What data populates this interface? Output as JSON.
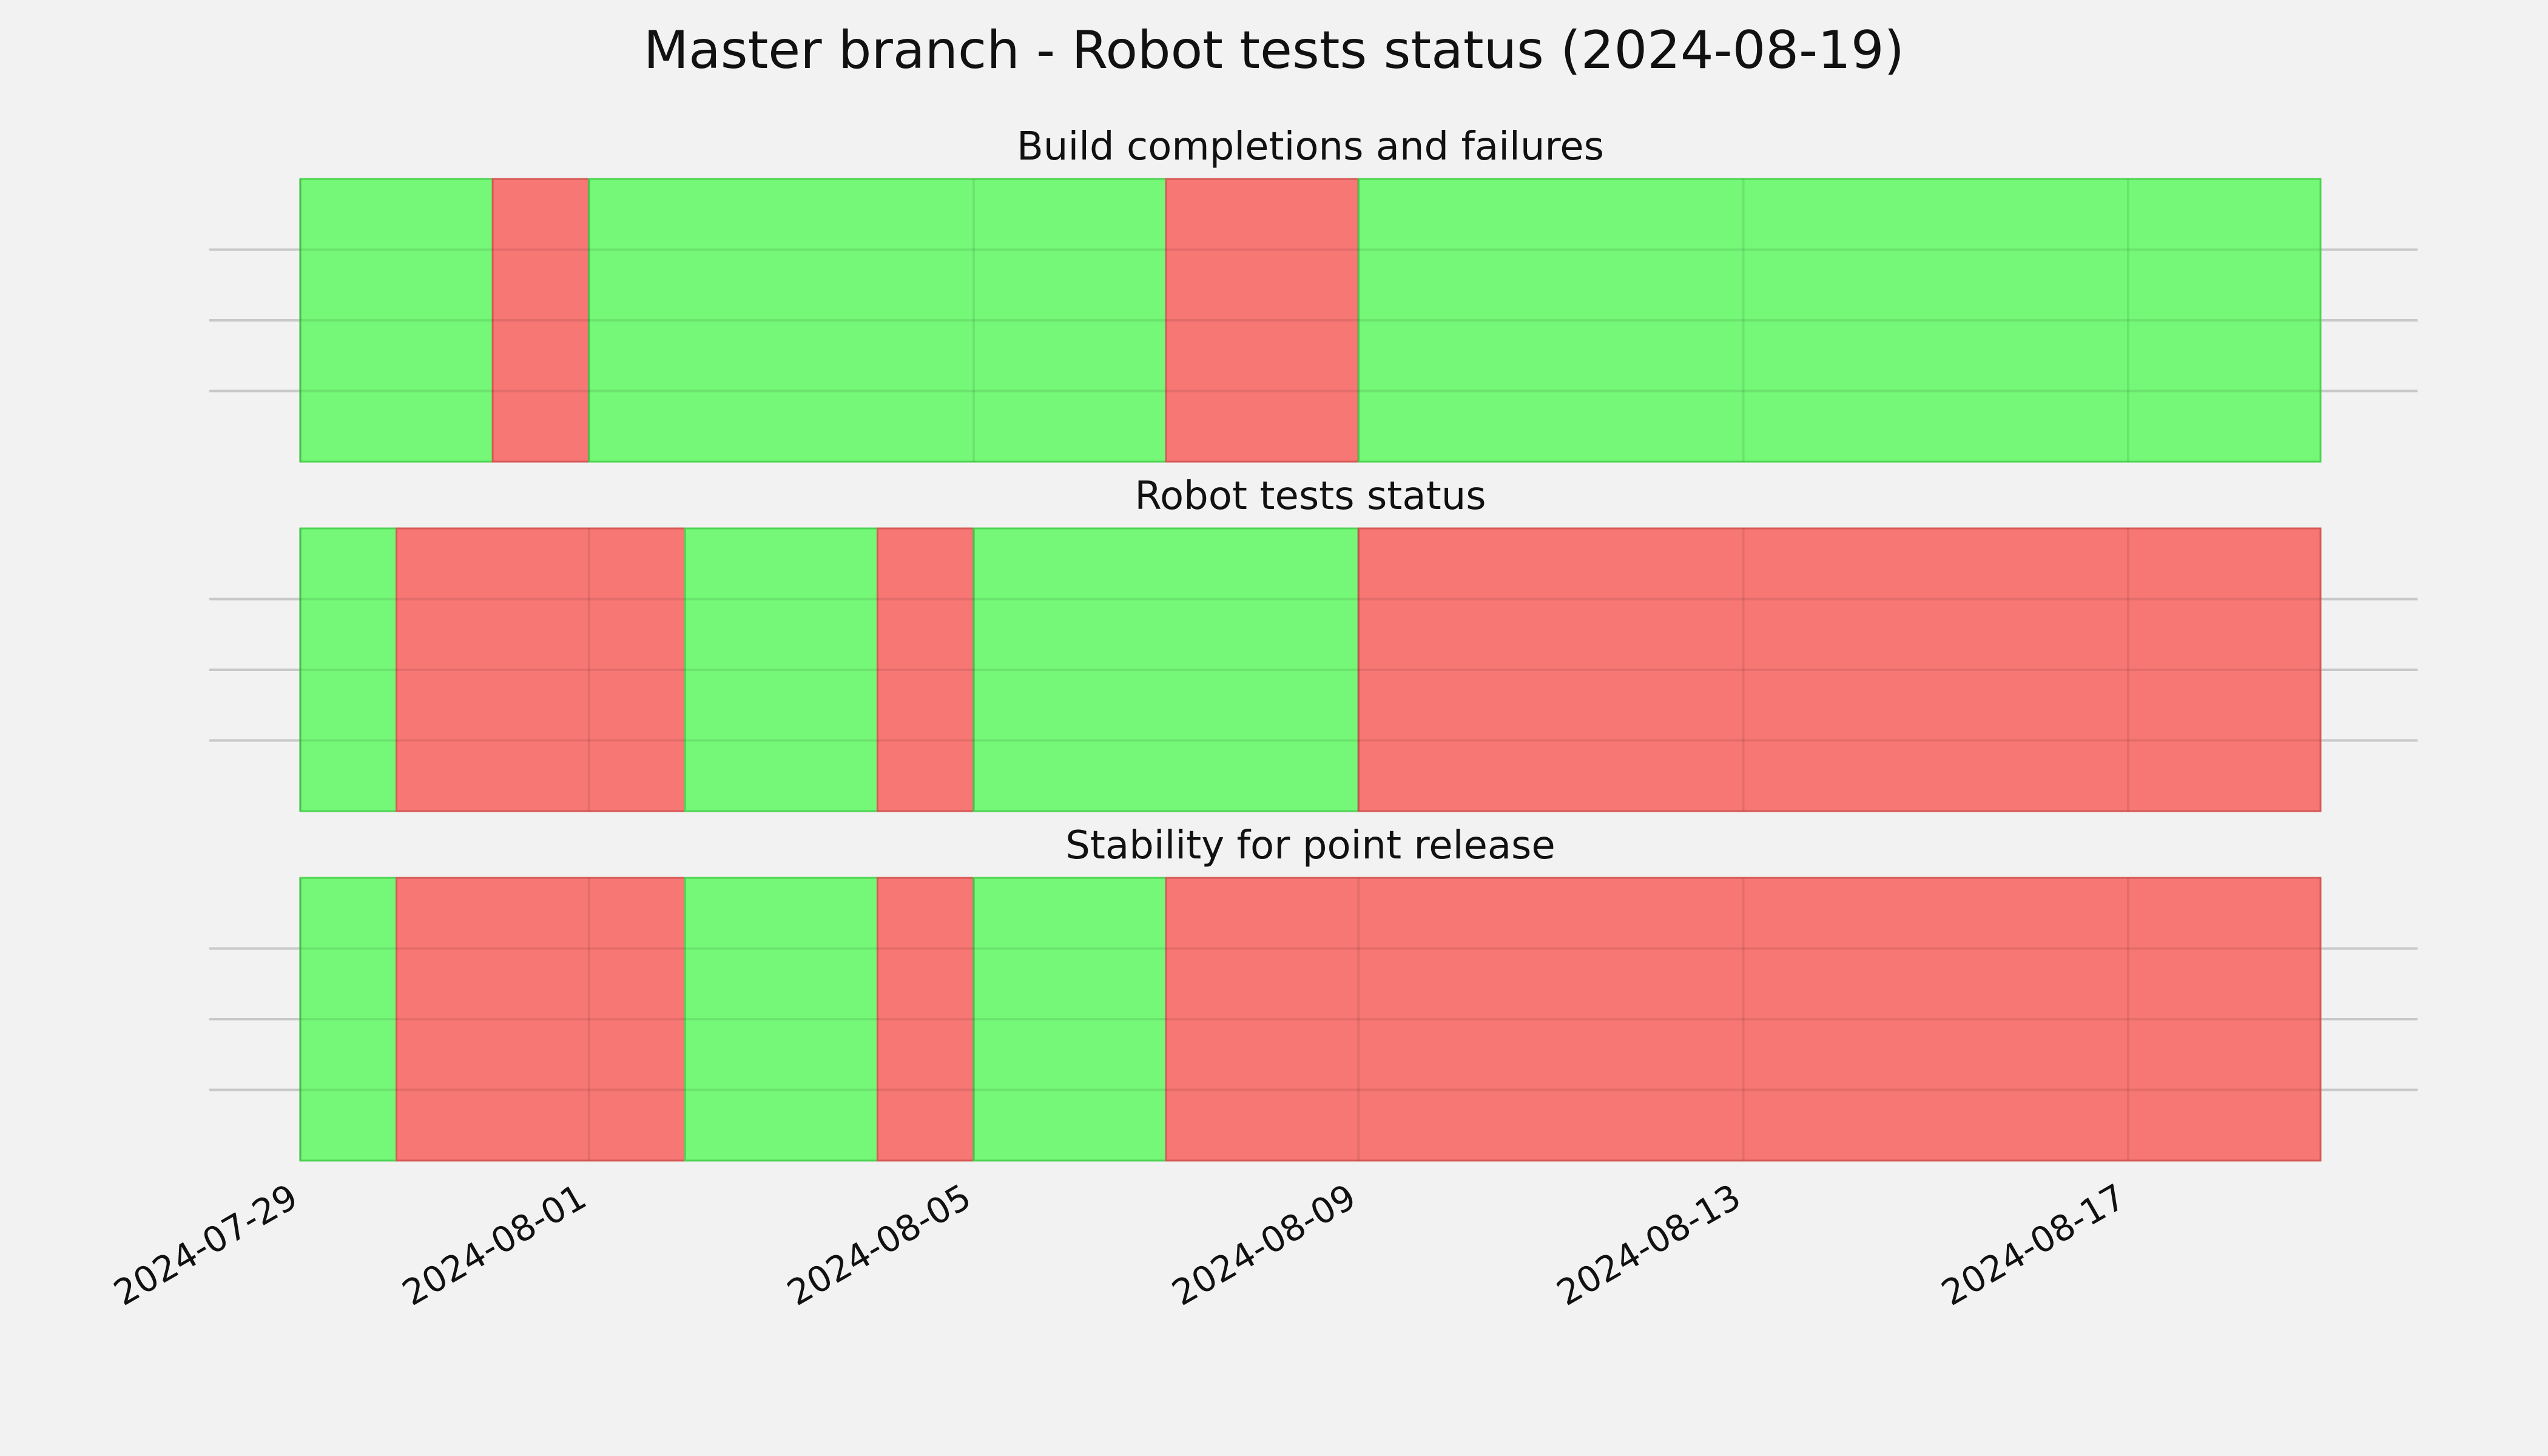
{
  "chart_data": {
    "type": "timeline",
    "title": "Master branch - Robot tests status (2024-08-19)",
    "x_range": [
      "2024-07-29",
      "2024-08-19"
    ],
    "x_ticks": [
      "2024-07-29",
      "2024-08-01",
      "2024-08-05",
      "2024-08-09",
      "2024-08-13",
      "2024-08-17"
    ],
    "grid": true,
    "colors": {
      "pass": "#75f878",
      "fail": "#f77774",
      "pass_edge": "#4ed452",
      "fail_edge": "#d65a57"
    },
    "panels": [
      {
        "title": "Build completions and failures",
        "segments": [
          {
            "start": "2024-07-29",
            "end": "2024-07-31",
            "status": "pass"
          },
          {
            "start": "2024-07-31",
            "end": "2024-08-01",
            "status": "fail"
          },
          {
            "start": "2024-08-01",
            "end": "2024-08-07",
            "status": "pass"
          },
          {
            "start": "2024-08-07",
            "end": "2024-08-09",
            "status": "fail"
          },
          {
            "start": "2024-08-09",
            "end": "2024-08-19",
            "status": "pass"
          }
        ]
      },
      {
        "title": "Robot tests status",
        "segments": [
          {
            "start": "2024-07-29",
            "end": "2024-07-30",
            "status": "pass"
          },
          {
            "start": "2024-07-30",
            "end": "2024-08-02",
            "status": "fail"
          },
          {
            "start": "2024-08-02",
            "end": "2024-08-04",
            "status": "pass"
          },
          {
            "start": "2024-08-04",
            "end": "2024-08-05",
            "status": "fail"
          },
          {
            "start": "2024-08-05",
            "end": "2024-08-09",
            "status": "pass"
          },
          {
            "start": "2024-08-09",
            "end": "2024-08-19",
            "status": "fail"
          }
        ]
      },
      {
        "title": "Stability for point release",
        "segments": [
          {
            "start": "2024-07-29",
            "end": "2024-07-30",
            "status": "pass"
          },
          {
            "start": "2024-07-30",
            "end": "2024-08-02",
            "status": "fail"
          },
          {
            "start": "2024-08-02",
            "end": "2024-08-04",
            "status": "pass"
          },
          {
            "start": "2024-08-04",
            "end": "2024-08-05",
            "status": "fail"
          },
          {
            "start": "2024-08-05",
            "end": "2024-08-07",
            "status": "pass"
          },
          {
            "start": "2024-08-07",
            "end": "2024-08-19",
            "status": "fail"
          }
        ]
      }
    ]
  }
}
